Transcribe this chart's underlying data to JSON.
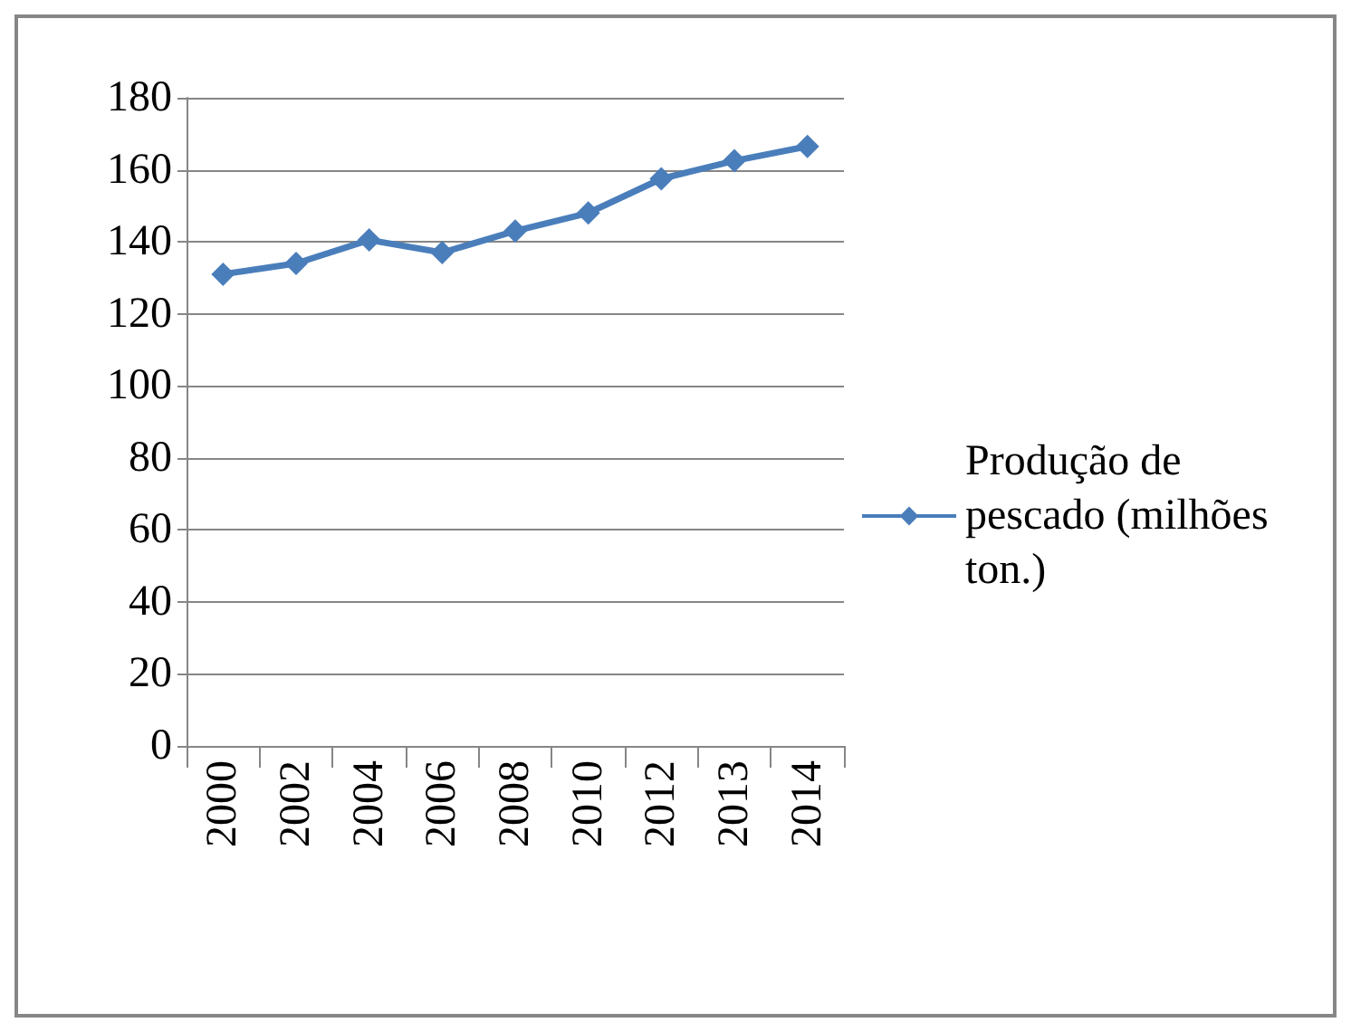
{
  "chart_data": {
    "type": "line",
    "categories": [
      "2000",
      "2002",
      "2004",
      "2006",
      "2008",
      "2010",
      "2012",
      "2013",
      "2014"
    ],
    "series": [
      {
        "name": "Produção de pescado (milhões ton.)",
        "color": "#4a7ebb",
        "values": [
          131,
          134,
          140.5,
          137,
          143,
          148,
          157.5,
          162.5,
          166.5
        ]
      }
    ],
    "ylim": [
      0,
      180
    ],
    "yticks": [
      0,
      20,
      40,
      60,
      80,
      100,
      120,
      140,
      160,
      180
    ],
    "grid": "y",
    "legend": "right",
    "marker": "diamond",
    "line_style": "solid"
  }
}
